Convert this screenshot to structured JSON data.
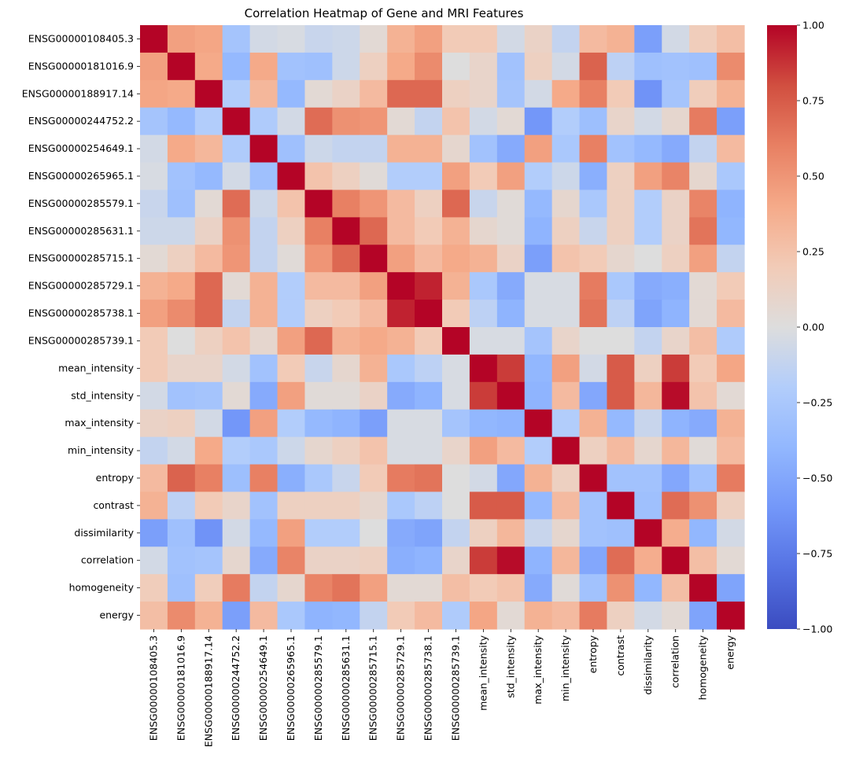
{
  "chart_data": {
    "type": "heatmap",
    "title": "Correlation Heatmap of Gene and MRI Features",
    "colormap": "coolwarm",
    "vmin": -1.0,
    "vmax": 1.0,
    "colorbar_ticks": [
      "1.00",
      "0.75",
      "0.50",
      "0.25",
      "0.00",
      "−0.25",
      "−0.50",
      "−0.75",
      "−1.00"
    ],
    "colorbar_values": [
      1.0,
      0.75,
      0.5,
      0.25,
      0.0,
      -0.25,
      -0.5,
      -0.75,
      -1.0
    ],
    "labels": [
      "ENSG00000108405.3",
      "ENSG00000181016.9",
      "ENSG00000188917.14",
      "ENSG00000244752.2",
      "ENSG00000254649.1",
      "ENSG00000265965.1",
      "ENSG00000285579.1",
      "ENSG00000285631.1",
      "ENSG00000285715.1",
      "ENSG00000285729.1",
      "ENSG00000285738.1",
      "ENSG00000285739.1",
      "mean_intensity",
      "std_intensity",
      "max_intensity",
      "min_intensity",
      "entropy",
      "contrast",
      "dissimilarity",
      "correlation",
      "homogeneity",
      "energy"
    ],
    "matrix": [
      [
        1.0,
        0.45,
        0.42,
        -0.28,
        -0.05,
        -0.03,
        -0.1,
        -0.08,
        0.05,
        0.35,
        0.45,
        0.2,
        0.2,
        -0.05,
        0.12,
        -0.12,
        0.3,
        0.35,
        -0.55,
        -0.05,
        0.18,
        0.28
      ],
      [
        0.45,
        1.0,
        0.4,
        -0.38,
        0.4,
        -0.3,
        -0.32,
        -0.08,
        0.15,
        0.4,
        0.55,
        0.0,
        0.1,
        -0.3,
        0.15,
        -0.05,
        0.72,
        -0.15,
        -0.32,
        -0.3,
        -0.32,
        0.55
      ],
      [
        0.42,
        0.4,
        1.0,
        -0.2,
        0.32,
        -0.38,
        0.05,
        0.12,
        0.3,
        0.7,
        0.7,
        0.15,
        0.1,
        -0.28,
        -0.05,
        0.4,
        0.6,
        0.2,
        -0.62,
        -0.28,
        0.18,
        0.35
      ],
      [
        -0.28,
        -0.38,
        -0.2,
        1.0,
        -0.22,
        -0.05,
        0.68,
        0.52,
        0.5,
        0.05,
        -0.12,
        0.25,
        -0.05,
        0.05,
        -0.6,
        -0.2,
        -0.33,
        0.1,
        -0.05,
        0.08,
        0.62,
        -0.55
      ],
      [
        -0.05,
        0.4,
        0.32,
        -0.22,
        1.0,
        -0.32,
        -0.08,
        -0.12,
        -0.12,
        0.35,
        0.35,
        0.08,
        -0.3,
        -0.48,
        0.45,
        -0.25,
        0.6,
        -0.3,
        -0.38,
        -0.48,
        -0.12,
        0.3
      ],
      [
        -0.03,
        -0.3,
        -0.38,
        -0.05,
        -0.32,
        1.0,
        0.25,
        0.15,
        0.03,
        -0.2,
        -0.2,
        0.45,
        0.2,
        0.45,
        -0.2,
        -0.08,
        -0.45,
        0.15,
        0.45,
        0.58,
        0.08,
        -0.25
      ],
      [
        -0.1,
        -0.32,
        0.05,
        0.68,
        -0.08,
        0.25,
        1.0,
        0.6,
        0.5,
        0.3,
        0.15,
        0.7,
        -0.1,
        0.03,
        -0.38,
        0.08,
        -0.25,
        0.15,
        -0.2,
        0.12,
        0.58,
        -0.42
      ],
      [
        -0.08,
        -0.08,
        0.12,
        0.52,
        -0.12,
        0.15,
        0.6,
        1.0,
        0.7,
        0.3,
        0.2,
        0.35,
        0.08,
        0.03,
        -0.42,
        0.15,
        -0.1,
        0.15,
        -0.2,
        0.12,
        0.65,
        -0.4
      ],
      [
        0.05,
        0.15,
        0.3,
        0.5,
        -0.12,
        0.03,
        0.5,
        0.7,
        1.0,
        0.45,
        0.3,
        0.4,
        0.35,
        0.12,
        -0.55,
        0.25,
        0.2,
        0.08,
        0.0,
        0.15,
        0.45,
        -0.12
      ],
      [
        0.35,
        0.4,
        0.7,
        0.05,
        0.35,
        -0.2,
        0.3,
        0.3,
        0.45,
        1.0,
        0.92,
        0.35,
        -0.25,
        -0.48,
        -0.03,
        -0.03,
        0.62,
        -0.25,
        -0.48,
        -0.45,
        0.05,
        0.2
      ],
      [
        0.45,
        0.55,
        0.7,
        -0.12,
        0.35,
        -0.2,
        0.15,
        0.2,
        0.3,
        0.92,
        1.0,
        0.2,
        -0.15,
        -0.42,
        -0.03,
        -0.03,
        0.65,
        -0.15,
        -0.52,
        -0.42,
        0.05,
        0.3
      ],
      [
        0.2,
        0.0,
        0.15,
        0.25,
        0.08,
        0.45,
        0.7,
        0.35,
        0.4,
        0.35,
        0.2,
        1.0,
        -0.03,
        -0.03,
        -0.28,
        0.1,
        0.0,
        0.0,
        -0.12,
        0.1,
        0.28,
        -0.22
      ],
      [
        0.2,
        0.1,
        0.1,
        -0.05,
        -0.3,
        0.2,
        -0.1,
        0.08,
        0.35,
        -0.25,
        -0.15,
        -0.03,
        1.0,
        0.85,
        -0.4,
        0.45,
        -0.05,
        0.75,
        0.15,
        0.85,
        0.2,
        0.42
      ],
      [
        -0.05,
        -0.3,
        -0.28,
        0.05,
        -0.48,
        0.45,
        0.03,
        0.03,
        0.12,
        -0.48,
        -0.42,
        -0.03,
        0.85,
        1.0,
        -0.42,
        0.3,
        -0.5,
        0.75,
        0.32,
        0.98,
        0.25,
        0.05
      ],
      [
        0.12,
        0.15,
        -0.05,
        -0.6,
        0.45,
        -0.2,
        -0.38,
        -0.42,
        -0.55,
        -0.03,
        -0.03,
        -0.28,
        -0.4,
        -0.42,
        1.0,
        -0.2,
        0.35,
        -0.38,
        -0.1,
        -0.42,
        -0.48,
        0.35
      ],
      [
        -0.12,
        -0.05,
        0.4,
        -0.2,
        -0.25,
        -0.08,
        0.08,
        0.15,
        0.25,
        -0.03,
        -0.03,
        0.1,
        0.45,
        0.3,
        -0.2,
        1.0,
        0.15,
        0.3,
        0.08,
        0.32,
        0.03,
        0.3
      ],
      [
        0.3,
        0.72,
        0.6,
        -0.33,
        0.6,
        -0.45,
        -0.25,
        -0.1,
        0.2,
        0.62,
        0.65,
        0.0,
        -0.05,
        -0.5,
        0.35,
        0.15,
        1.0,
        -0.3,
        -0.3,
        -0.5,
        -0.3,
        0.62
      ],
      [
        0.35,
        -0.15,
        0.2,
        0.1,
        -0.3,
        0.15,
        0.15,
        0.15,
        0.08,
        -0.25,
        -0.15,
        0.0,
        0.75,
        0.75,
        -0.38,
        0.3,
        -0.3,
        1.0,
        -0.32,
        0.68,
        0.52,
        0.15
      ],
      [
        -0.55,
        -0.32,
        -0.62,
        -0.05,
        -0.38,
        0.45,
        -0.2,
        -0.2,
        0.0,
        -0.48,
        -0.52,
        -0.12,
        0.15,
        0.32,
        -0.1,
        0.08,
        -0.3,
        -0.32,
        1.0,
        0.38,
        -0.4,
        -0.05
      ],
      [
        -0.05,
        -0.3,
        -0.28,
        0.08,
        -0.48,
        0.58,
        0.12,
        0.12,
        0.15,
        -0.45,
        -0.42,
        0.1,
        0.85,
        0.98,
        -0.42,
        0.32,
        -0.5,
        0.68,
        0.38,
        1.0,
        0.28,
        0.05
      ],
      [
        0.18,
        -0.32,
        0.18,
        0.62,
        -0.12,
        0.08,
        0.58,
        0.65,
        0.45,
        0.05,
        0.05,
        0.28,
        0.2,
        0.25,
        -0.48,
        0.03,
        -0.3,
        0.52,
        -0.4,
        0.28,
        1.0,
        -0.52
      ],
      [
        0.28,
        0.55,
        0.35,
        -0.55,
        0.3,
        -0.25,
        -0.42,
        -0.4,
        -0.12,
        0.2,
        0.3,
        -0.22,
        0.42,
        0.05,
        0.35,
        0.3,
        0.62,
        0.15,
        -0.05,
        0.05,
        -0.52,
        1.0
      ]
    ]
  }
}
